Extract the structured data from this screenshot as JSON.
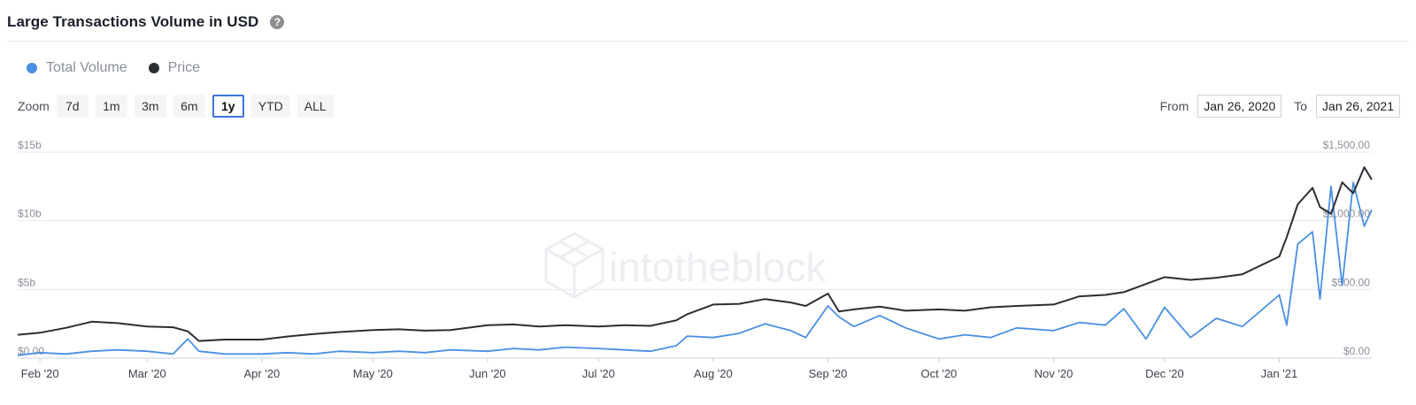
{
  "header": {
    "title": "Large Transactions Volume in USD",
    "help_icon": "?"
  },
  "legend": [
    {
      "label": "Total Volume",
      "color": "#4a8fe3"
    },
    {
      "label": "Price",
      "color": "#2b2e33"
    }
  ],
  "zoom": {
    "label": "Zoom",
    "buttons": [
      "7d",
      "1m",
      "3m",
      "6m",
      "1y",
      "YTD",
      "ALL"
    ],
    "active": "1y"
  },
  "range": {
    "from_label": "From",
    "from_value": "Jan 26, 2020",
    "to_label": "To",
    "to_value": "Jan 26, 2021"
  },
  "watermark": "intotheblock",
  "chart_data": {
    "type": "line",
    "title": "Large Transactions Volume in USD",
    "x_range": [
      "2020-01-26",
      "2021-01-26"
    ],
    "x_ticks": [
      "Feb '20",
      "Mar '20",
      "Apr '20",
      "May '20",
      "Jun '20",
      "Jul '20",
      "Aug '20",
      "Sep '20",
      "Oct '20",
      "Nov '20",
      "Dec '20",
      "Jan '21"
    ],
    "y_left": {
      "ticks": [
        "$0.00",
        "$5b",
        "$10b",
        "$15b"
      ],
      "range": [
        0,
        15
      ]
    },
    "y_right": {
      "ticks": [
        "$0.00",
        "$500.00",
        "$1,000.00",
        "$1,500.00"
      ],
      "range": [
        0,
        1500
      ]
    },
    "grid": true,
    "legend_position": "top-left",
    "series": [
      {
        "name": "Total Volume",
        "axis": "left",
        "color": "#4a8fe3",
        "x": [
          "2020-01-26",
          "2020-02-01",
          "2020-02-08",
          "2020-02-15",
          "2020-02-22",
          "2020-03-01",
          "2020-03-08",
          "2020-03-12",
          "2020-03-15",
          "2020-03-22",
          "2020-04-01",
          "2020-04-08",
          "2020-04-15",
          "2020-04-22",
          "2020-05-01",
          "2020-05-08",
          "2020-05-15",
          "2020-05-22",
          "2020-06-01",
          "2020-06-08",
          "2020-06-15",
          "2020-06-22",
          "2020-07-01",
          "2020-07-08",
          "2020-07-15",
          "2020-07-22",
          "2020-07-25",
          "2020-08-01",
          "2020-08-08",
          "2020-08-15",
          "2020-08-22",
          "2020-08-26",
          "2020-09-01",
          "2020-09-04",
          "2020-09-08",
          "2020-09-15",
          "2020-09-22",
          "2020-10-01",
          "2020-10-08",
          "2020-10-15",
          "2020-10-22",
          "2020-11-01",
          "2020-11-08",
          "2020-11-15",
          "2020-11-20",
          "2020-11-26",
          "2020-12-01",
          "2020-12-08",
          "2020-12-15",
          "2020-12-22",
          "2021-01-01",
          "2021-01-03",
          "2021-01-06",
          "2021-01-10",
          "2021-01-12",
          "2021-01-15",
          "2021-01-18",
          "2021-01-21",
          "2021-01-24",
          "2021-01-26"
        ],
        "values": [
          0.2,
          0.4,
          0.3,
          0.5,
          0.6,
          0.5,
          0.3,
          1.4,
          0.5,
          0.3,
          0.3,
          0.4,
          0.3,
          0.5,
          0.4,
          0.5,
          0.4,
          0.6,
          0.5,
          0.7,
          0.6,
          0.8,
          0.7,
          0.6,
          0.5,
          0.9,
          1.6,
          1.5,
          1.8,
          2.5,
          2.0,
          1.5,
          3.8,
          3.0,
          2.3,
          3.1,
          2.2,
          1.4,
          1.7,
          1.5,
          2.2,
          2.0,
          2.6,
          2.4,
          3.6,
          1.4,
          3.7,
          1.5,
          2.9,
          2.3,
          4.6,
          2.4,
          8.3,
          9.2,
          4.3,
          12.5,
          5.3,
          12.8,
          9.6,
          10.8
        ]
      },
      {
        "name": "Price",
        "axis": "right",
        "color": "#2b2e33",
        "x": [
          "2020-01-26",
          "2020-02-01",
          "2020-02-08",
          "2020-02-15",
          "2020-02-22",
          "2020-03-01",
          "2020-03-08",
          "2020-03-12",
          "2020-03-15",
          "2020-03-22",
          "2020-04-01",
          "2020-04-08",
          "2020-04-15",
          "2020-04-22",
          "2020-05-01",
          "2020-05-08",
          "2020-05-15",
          "2020-05-22",
          "2020-06-01",
          "2020-06-08",
          "2020-06-15",
          "2020-06-22",
          "2020-07-01",
          "2020-07-08",
          "2020-07-15",
          "2020-07-22",
          "2020-07-25",
          "2020-08-01",
          "2020-08-08",
          "2020-08-15",
          "2020-08-22",
          "2020-08-26",
          "2020-09-01",
          "2020-09-04",
          "2020-09-08",
          "2020-09-15",
          "2020-09-22",
          "2020-10-01",
          "2020-10-08",
          "2020-10-15",
          "2020-10-22",
          "2020-11-01",
          "2020-11-08",
          "2020-11-15",
          "2020-11-20",
          "2020-11-26",
          "2020-12-01",
          "2020-12-08",
          "2020-12-15",
          "2020-12-22",
          "2021-01-01",
          "2021-01-03",
          "2021-01-06",
          "2021-01-10",
          "2021-01-12",
          "2021-01-15",
          "2021-01-18",
          "2021-01-21",
          "2021-01-24",
          "2021-01-26"
        ],
        "values": [
          170,
          185,
          220,
          265,
          255,
          230,
          225,
          195,
          125,
          135,
          135,
          158,
          175,
          190,
          205,
          210,
          200,
          205,
          240,
          245,
          230,
          240,
          230,
          240,
          235,
          275,
          320,
          390,
          395,
          430,
          405,
          380,
          470,
          340,
          355,
          375,
          345,
          355,
          345,
          370,
          380,
          390,
          450,
          460,
          480,
          540,
          590,
          570,
          585,
          610,
          740,
          880,
          1120,
          1240,
          1100,
          1050,
          1280,
          1200,
          1390,
          1300
        ]
      }
    ]
  }
}
